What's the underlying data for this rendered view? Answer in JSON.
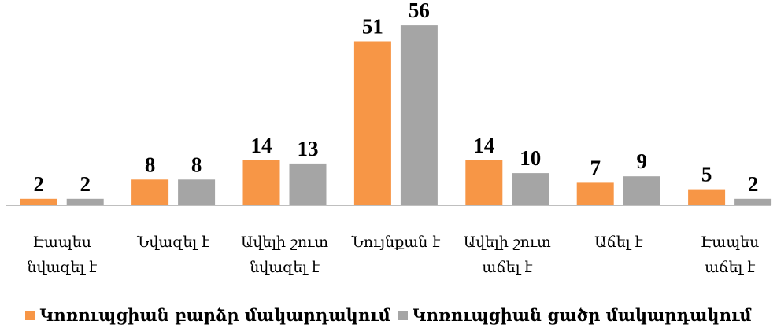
{
  "chart_data": {
    "type": "bar",
    "categories": [
      [
        "Էապես",
        "նվազել է"
      ],
      [
        "Նվազել է"
      ],
      [
        "Ավելի շուտ",
        "նվազել է"
      ],
      [
        "Նույնքան է"
      ],
      [
        "Ավելի շուտ",
        "աճել է"
      ],
      [
        "Աճել է"
      ],
      [
        "Էապես",
        "աճել է"
      ]
    ],
    "series": [
      {
        "name": "Կոռուպցիան բարձր մակարդակում",
        "color": "#f79646",
        "values": [
          2,
          8,
          14,
          51,
          14,
          7,
          5
        ]
      },
      {
        "name": "Կոռուպցիան ցածր մակարդակում",
        "color": "#a5a5a5",
        "values": [
          2,
          8,
          13,
          56,
          10,
          9,
          2
        ]
      }
    ],
    "ylim": [
      0,
      57
    ],
    "grid": false,
    "legend_position": "bottom"
  }
}
